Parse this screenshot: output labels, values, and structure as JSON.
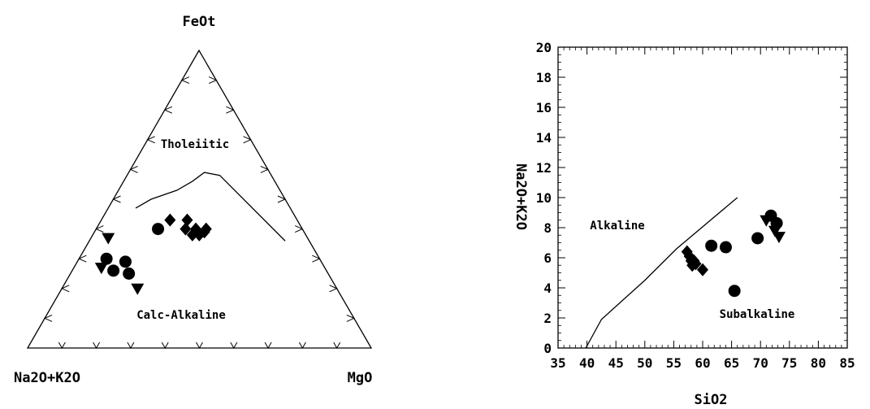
{
  "chart_data": [
    {
      "type": "ternary",
      "vertex_labels": {
        "top": "FeOt",
        "left": "Na2O+K2O",
        "right": "MgO"
      },
      "field_labels": {
        "upper": "Tholeiitic",
        "lower": "Calc-Alkaline"
      },
      "boundary_line": [
        {
          "a": 0.45,
          "f": 0.47,
          "m": 0.08
        },
        {
          "a": 0.39,
          "f": 0.5,
          "m": 0.11
        },
        {
          "a": 0.3,
          "f": 0.53,
          "m": 0.17
        },
        {
          "a": 0.24,
          "f": 0.56,
          "m": 0.2
        },
        {
          "a": 0.19,
          "f": 0.59,
          "m": 0.22
        },
        {
          "a": 0.15,
          "f": 0.58,
          "m": 0.27
        },
        {
          "a": 0.07,
          "f": 0.36,
          "m": 0.57
        }
      ],
      "series": [
        {
          "marker": "diamond",
          "points": [
            {
              "a": 0.37,
              "f": 0.43,
              "m": 0.2
            },
            {
              "a": 0.32,
              "f": 0.43,
              "m": 0.25
            },
            {
              "a": 0.34,
              "f": 0.4,
              "m": 0.26
            },
            {
              "a": 0.33,
              "f": 0.38,
              "m": 0.29
            },
            {
              "a": 0.31,
              "f": 0.38,
              "m": 0.31
            },
            {
              "a": 0.29,
              "f": 0.39,
              "m": 0.32
            },
            {
              "a": 0.28,
              "f": 0.4,
              "m": 0.32
            },
            {
              "a": 0.31,
              "f": 0.4,
              "m": 0.29
            }
          ]
        },
        {
          "marker": "circle",
          "points": [
            {
              "a": 0.42,
              "f": 0.4,
              "m": 0.18
            },
            {
              "a": 0.57,
              "f": 0.29,
              "m": 0.14
            },
            {
              "a": 0.62,
              "f": 0.26,
              "m": 0.12
            },
            {
              "a": 0.58,
              "f": 0.25,
              "m": 0.17
            },
            {
              "a": 0.62,
              "f": 0.3,
              "m": 0.08
            }
          ]
        },
        {
          "marker": "triangle-down",
          "points": [
            {
              "a": 0.58,
              "f": 0.37,
              "m": 0.05
            },
            {
              "a": 0.65,
              "f": 0.27,
              "m": 0.08
            },
            {
              "a": 0.58,
              "f": 0.2,
              "m": 0.22
            }
          ]
        }
      ]
    },
    {
      "type": "scatter",
      "xlabel": "SiO2",
      "ylabel": "Na2O+K2O",
      "xlim": [
        35,
        85
      ],
      "ylim": [
        0,
        20
      ],
      "xticks": [
        "35",
        "40",
        "45",
        "50",
        "55",
        "60",
        "65",
        "70",
        "75",
        "80",
        "85"
      ],
      "yticks": [
        "0",
        "2",
        "4",
        "6",
        "8",
        "10",
        "12",
        "14",
        "16",
        "18",
        "20"
      ],
      "field_labels": {
        "upper": "Alkaline",
        "lower": "Subalkaline"
      },
      "boundary_line": [
        [
          39.8,
          0
        ],
        [
          42.5,
          1.9
        ],
        [
          50,
          4.5
        ],
        [
          55.5,
          6.6
        ],
        [
          66,
          10
        ]
      ],
      "series": [
        {
          "marker": "diamond",
          "points": [
            [
              57.3,
              6.4
            ],
            [
              57.7,
              6.1
            ],
            [
              58.0,
              5.8
            ],
            [
              58.2,
              5.5
            ],
            [
              58.5,
              5.8
            ],
            [
              58.8,
              5.6
            ],
            [
              60.0,
              5.2
            ]
          ]
        },
        {
          "marker": "circle",
          "points": [
            [
              61.5,
              6.8
            ],
            [
              64.0,
              6.7
            ],
            [
              65.5,
              3.8
            ],
            [
              69.5,
              7.3
            ],
            [
              71.8,
              8.8
            ],
            [
              72.8,
              8.3
            ]
          ]
        },
        {
          "marker": "triangle-down",
          "points": [
            [
              71.0,
              8.5
            ],
            [
              72.5,
              7.8
            ],
            [
              73.2,
              7.4
            ]
          ]
        }
      ]
    }
  ]
}
